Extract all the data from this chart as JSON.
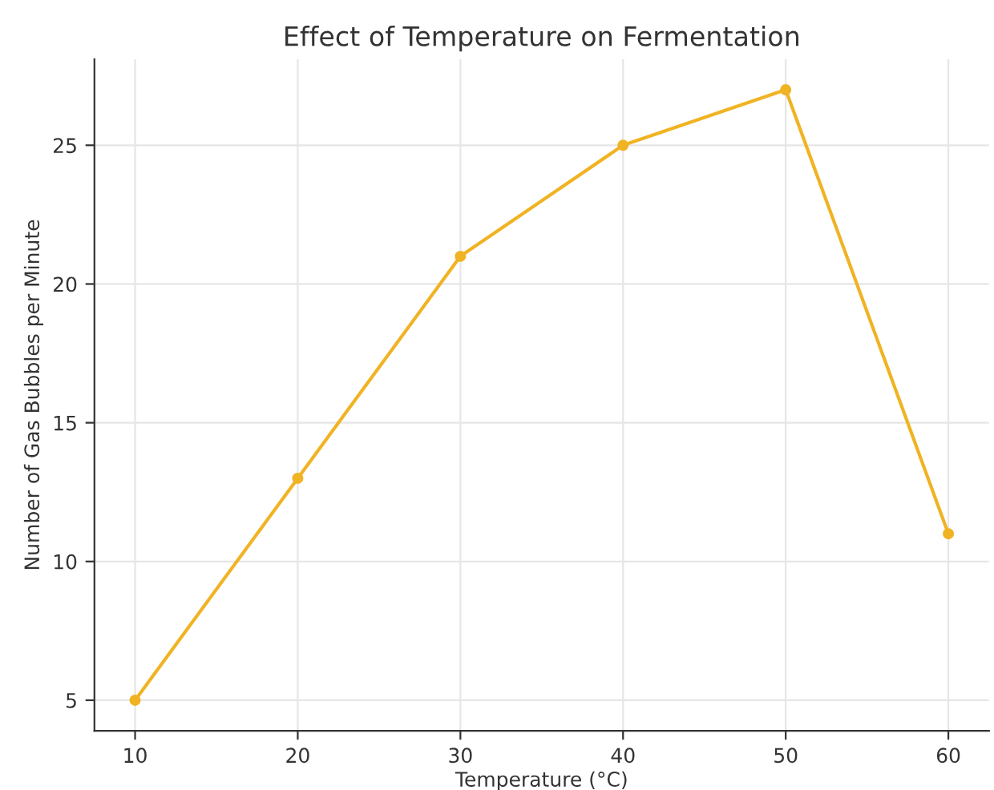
{
  "chart_data": {
    "type": "line",
    "title": "Effect of Temperature on Fermentation",
    "xlabel": "Temperature (°C)",
    "ylabel": "Number of Gas Bubbles per Minute",
    "x": [
      10,
      20,
      30,
      40,
      50,
      60
    ],
    "series": [
      {
        "color": "#f0b323",
        "values": [
          5,
          13,
          21,
          25,
          27,
          11
        ]
      }
    ],
    "xlim": [
      7.5,
      62.5
    ],
    "ylim": [
      3.9,
      28.1
    ],
    "xticks": [
      10,
      20,
      30,
      40,
      50,
      60
    ],
    "yticks": [
      5,
      10,
      15,
      20,
      25
    ],
    "grid": true,
    "marker": "circle",
    "line_style": "solid"
  }
}
